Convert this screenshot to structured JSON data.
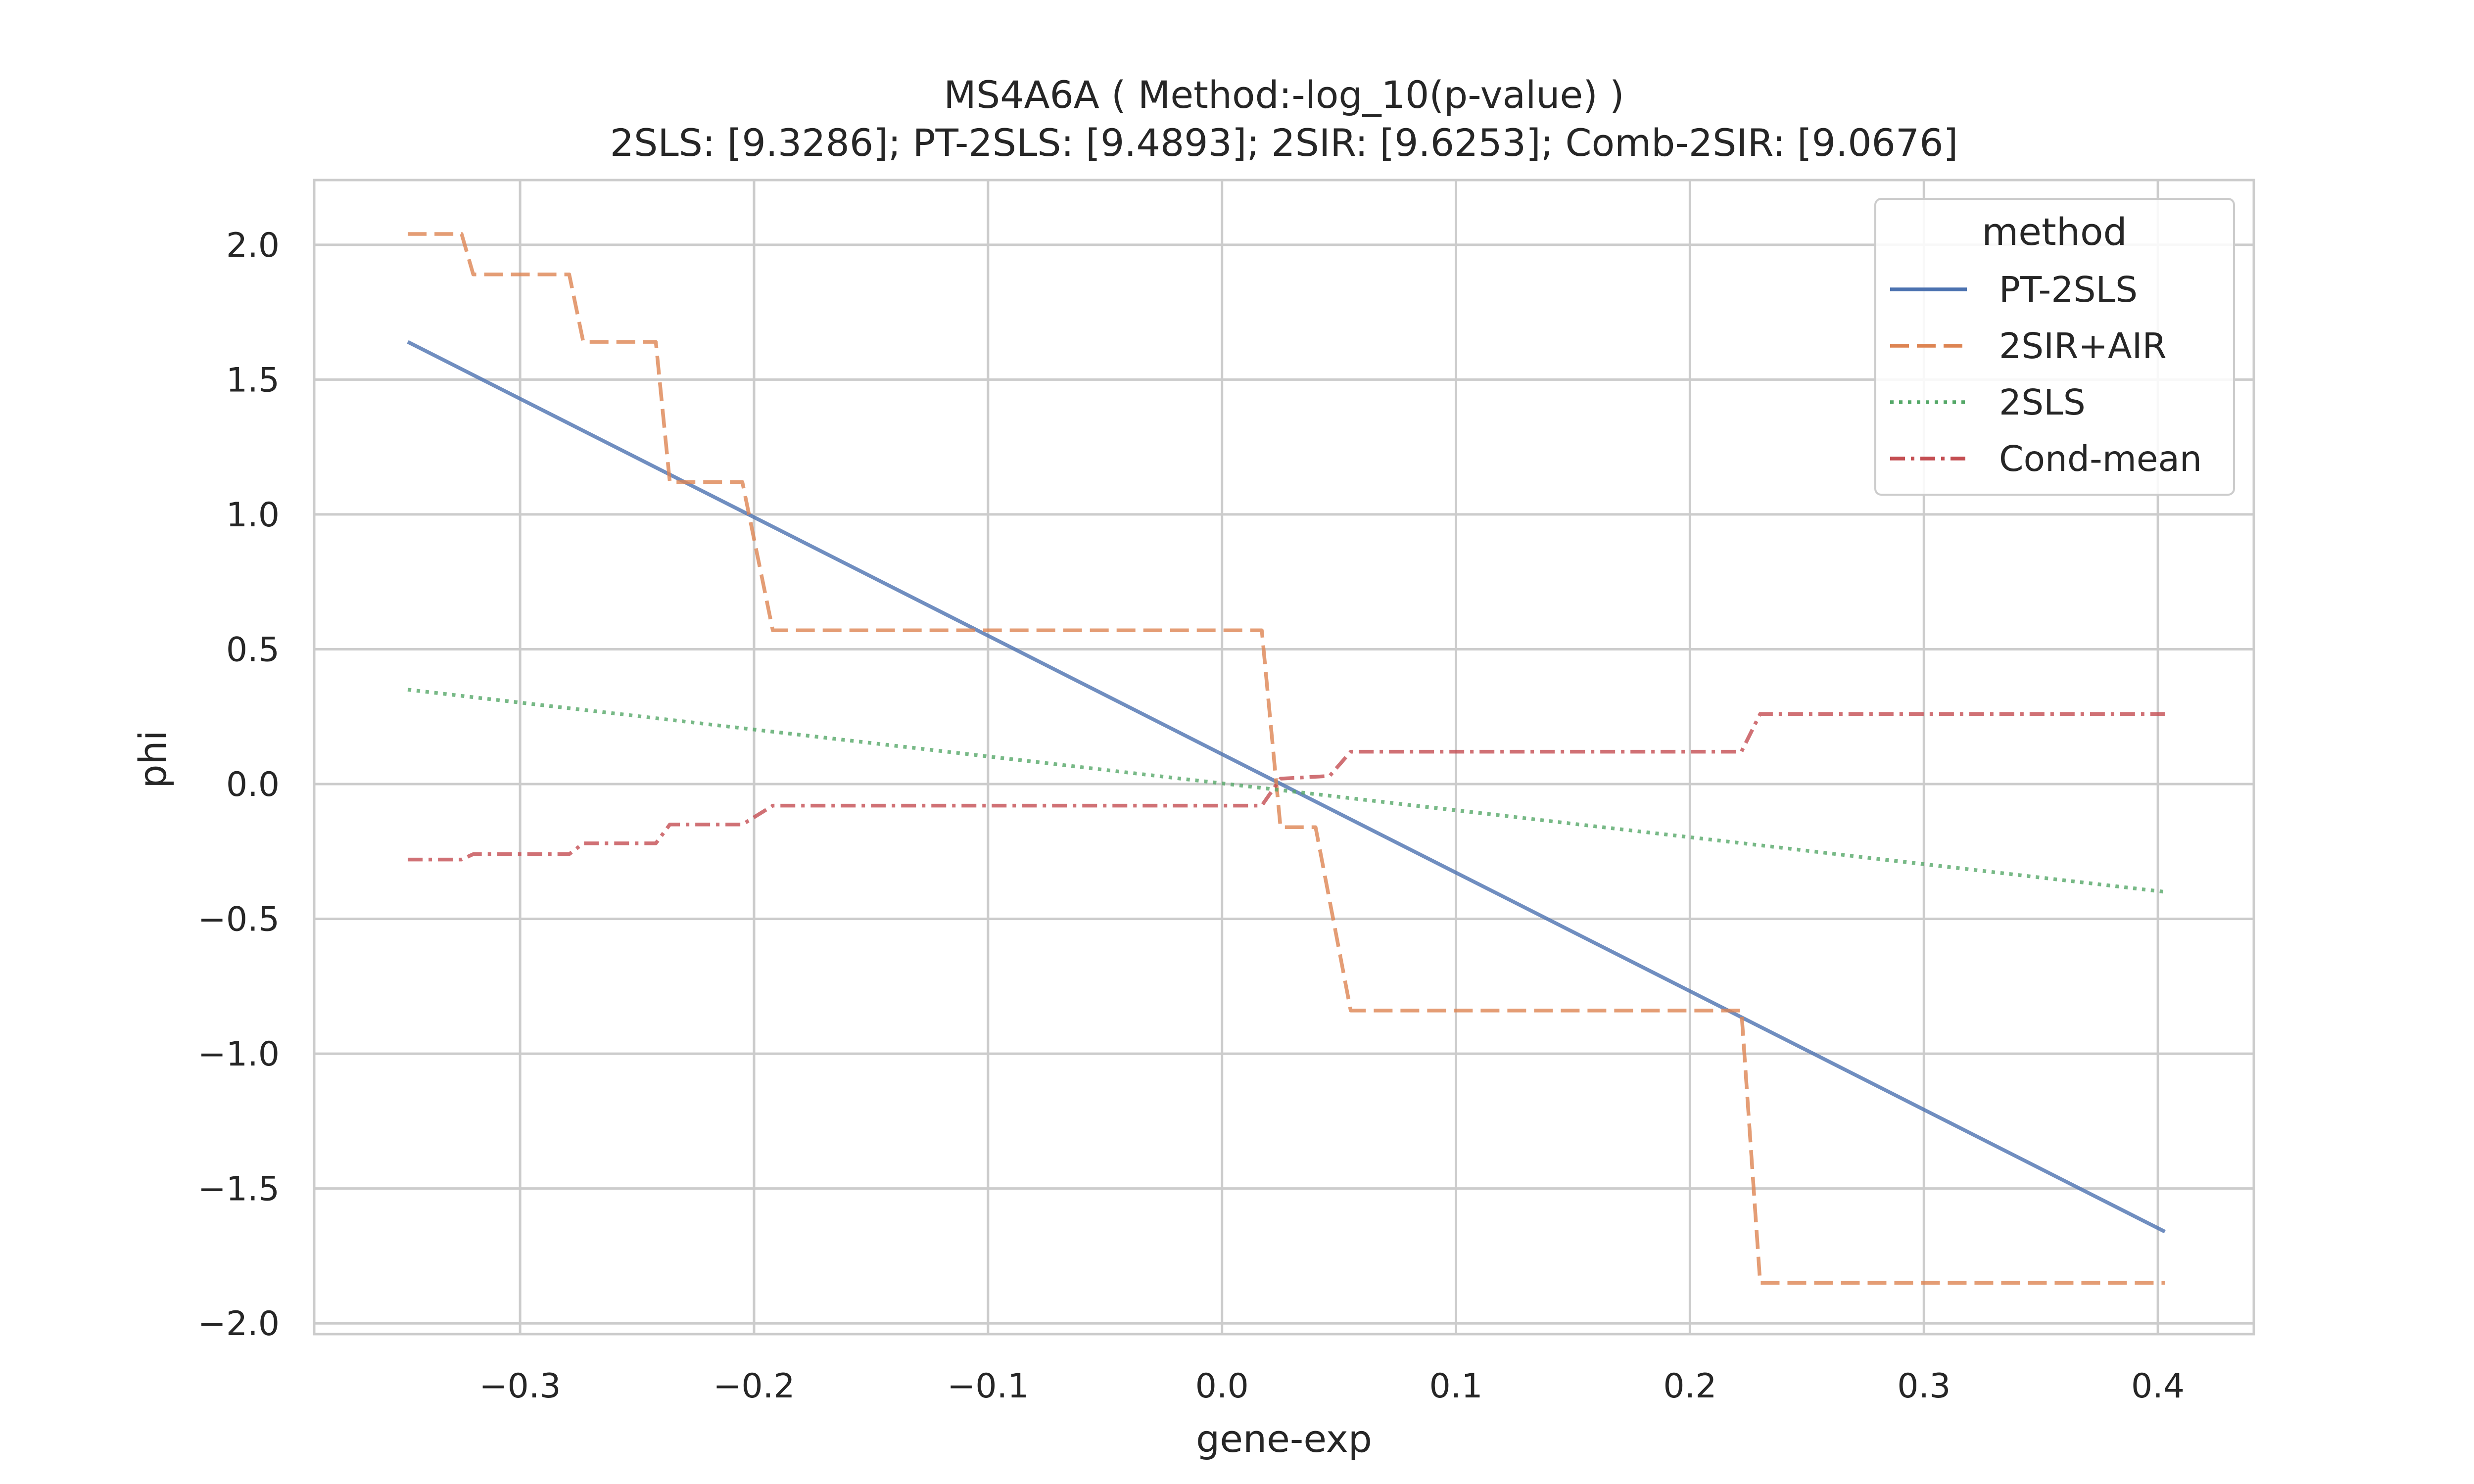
{
  "chart_data": {
    "type": "line",
    "title": "MS4A6A ( Method:-log_10(p-value) )",
    "subtitle": "2SLS: [9.3286]; PT-2SLS: [9.4893]; 2SIR: [9.6253]; Comb-2SIR: [9.0676]",
    "xlabel": "gene-exp",
    "ylabel": "phi",
    "xlim": [
      -0.388,
      0.441
    ],
    "ylim": [
      -2.04,
      2.24
    ],
    "xticks": [
      -0.3,
      -0.2,
      -0.1,
      0.0,
      0.1,
      0.2,
      0.3,
      0.4
    ],
    "xtick_labels": [
      "−0.3",
      "−0.2",
      "−0.1",
      "0.0",
      "0.1",
      "0.2",
      "0.3",
      "0.4"
    ],
    "yticks": [
      2.0,
      1.5,
      1.0,
      0.5,
      0.0,
      -0.5,
      -1.0,
      -1.5,
      -2.0
    ],
    "ytick_labels": [
      "2.0",
      "1.5",
      "1.0",
      "0.5",
      "0.0",
      "−0.5",
      "−1.0",
      "−1.5",
      "−2.0"
    ],
    "grid": true,
    "legend": {
      "title": "method",
      "placement": "top-right"
    },
    "series": [
      {
        "name": "PT-2SLS",
        "style": "solid",
        "color": "#4c72b0",
        "points": [
          [
            -0.348,
            1.64
          ],
          [
            0.403,
            -1.66
          ]
        ]
      },
      {
        "name": "2SIR+AIR",
        "style": "dashed",
        "color": "#dd8452",
        "points": [
          [
            -0.348,
            2.04
          ],
          [
            -0.325,
            2.04
          ],
          [
            -0.32,
            1.89
          ],
          [
            -0.279,
            1.89
          ],
          [
            -0.273,
            1.64
          ],
          [
            -0.242,
            1.64
          ],
          [
            -0.236,
            1.12
          ],
          [
            -0.205,
            1.12
          ],
          [
            -0.192,
            0.57
          ],
          [
            0.017,
            0.57
          ],
          [
            0.025,
            -0.16
          ],
          [
            0.04,
            -0.16
          ],
          [
            0.055,
            -0.84
          ],
          [
            0.222,
            -0.84
          ],
          [
            0.23,
            -1.85
          ],
          [
            0.403,
            -1.85
          ]
        ]
      },
      {
        "name": "2SLS",
        "style": "dotted",
        "color": "#55a868",
        "points": [
          [
            -0.348,
            0.35
          ],
          [
            0.403,
            -0.4
          ]
        ]
      },
      {
        "name": "Cond-mean",
        "style": "dashdot",
        "color": "#c44e52",
        "points": [
          [
            -0.348,
            -0.28
          ],
          [
            -0.325,
            -0.28
          ],
          [
            -0.32,
            -0.26
          ],
          [
            -0.279,
            -0.26
          ],
          [
            -0.273,
            -0.22
          ],
          [
            -0.242,
            -0.22
          ],
          [
            -0.236,
            -0.15
          ],
          [
            -0.205,
            -0.15
          ],
          [
            -0.192,
            -0.08
          ],
          [
            0.017,
            -0.08
          ],
          [
            0.025,
            0.02
          ],
          [
            0.046,
            0.03
          ],
          [
            0.055,
            0.12
          ],
          [
            0.222,
            0.12
          ],
          [
            0.23,
            0.26
          ],
          [
            0.403,
            0.26
          ]
        ]
      }
    ]
  }
}
